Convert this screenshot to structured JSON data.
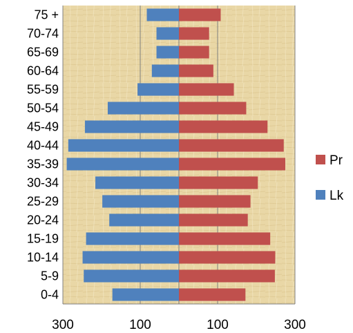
{
  "chart_data": {
    "type": "bar",
    "orientation": "horizontal",
    "categories": [
      "0-4",
      "5-9",
      "10-14",
      "15-19",
      "20-24",
      "25-29",
      "30-34",
      "35-39",
      "40-44",
      "45-49",
      "50-54",
      "55-59",
      "60-64",
      "65-69",
      "70-74",
      "75 +"
    ],
    "series": [
      {
        "name": "Lk",
        "color": "#4f81bd",
        "side": "left",
        "values": [
          172,
          246,
          249,
          240,
          180,
          198,
          216,
          290,
          286,
          243,
          184,
          107,
          70,
          58,
          58,
          83
        ]
      },
      {
        "name": "Pr",
        "color": "#c0504d",
        "side": "right",
        "values": [
          172,
          248,
          249,
          236,
          178,
          185,
          204,
          275,
          271,
          229,
          174,
          142,
          89,
          78,
          78,
          108
        ]
      }
    ],
    "x_ticks": [
      "300",
      "100",
      "100",
      "300"
    ],
    "xlim": [
      -300,
      300
    ],
    "grid": true,
    "legend_position": "right",
    "background": "#e8d6a8"
  }
}
